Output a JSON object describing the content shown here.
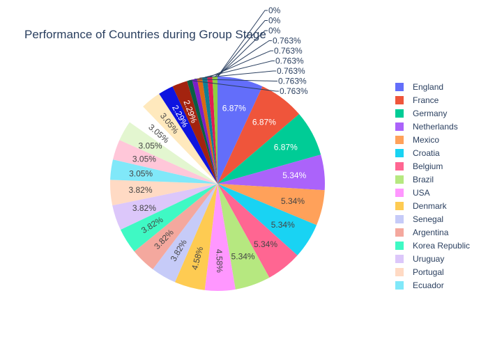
{
  "chart_data": {
    "type": "pie",
    "title": "Performance of Countries during Group Stage",
    "units": "%",
    "slices": [
      {
        "label": "England",
        "value": 6.87,
        "color": "#636efa"
      },
      {
        "label": "France",
        "value": 6.87,
        "color": "#EF553B"
      },
      {
        "label": "Germany",
        "value": 6.87,
        "color": "#00cc96"
      },
      {
        "label": "Netherlands",
        "value": 5.34,
        "color": "#ab63fa"
      },
      {
        "label": "Mexico",
        "value": 5.34,
        "color": "#FFA15A"
      },
      {
        "label": "Croatia",
        "value": 5.34,
        "color": "#19d3f3"
      },
      {
        "label": "Belgium",
        "value": 5.34,
        "color": "#FF6692"
      },
      {
        "label": "Brazil",
        "value": 5.34,
        "color": "#B6E880"
      },
      {
        "label": "USA",
        "value": 4.58,
        "color": "#FF97FF"
      },
      {
        "label": "Denmark",
        "value": 4.58,
        "color": "#FECB52"
      },
      {
        "label": "Senegal",
        "value": 3.82,
        "color": "#c6cbf8"
      },
      {
        "label": "Argentina",
        "value": 3.82,
        "color": "#f4a89e"
      },
      {
        "label": "Korea Republic",
        "value": 3.82,
        "color": "#3ff9c4"
      },
      {
        "label": "Uruguay",
        "value": 3.82,
        "color": "#dcc7fa"
      },
      {
        "label": "Portugal",
        "value": 3.82,
        "color": "#ffdac4"
      },
      {
        "label": "Ecuador",
        "value": 3.05,
        "color": "#80e8f9"
      },
      {
        "value": 3.05,
        "color": "#ffc7d9"
      },
      {
        "value": 3.05,
        "color": "#e3f6d0"
      },
      {
        "value": 3.05,
        "color": "#ffffff"
      },
      {
        "value": 3.05,
        "color": "#ffe9bd"
      },
      {
        "value": 2.29,
        "color": "#0e14e0"
      },
      {
        "value": 2.29,
        "color": "#a3230f"
      },
      {
        "value": 0.763,
        "color": "#0a5f44"
      },
      {
        "value": 0.763,
        "color": "#7b1fc8"
      },
      {
        "value": 0.763,
        "color": "#d96a14"
      },
      {
        "value": 0.763,
        "color": "#0f7f95"
      },
      {
        "value": 0.763,
        "color": "#e11d55"
      },
      {
        "value": 0.763,
        "color": "#8fcf40"
      },
      {
        "value": 0,
        "color": "#e040e0"
      },
      {
        "value": 0,
        "color": "#e0a800"
      },
      {
        "value": 0,
        "color": "#7d86f0"
      }
    ],
    "legend_position": "right",
    "legend_visible_count": 16
  }
}
